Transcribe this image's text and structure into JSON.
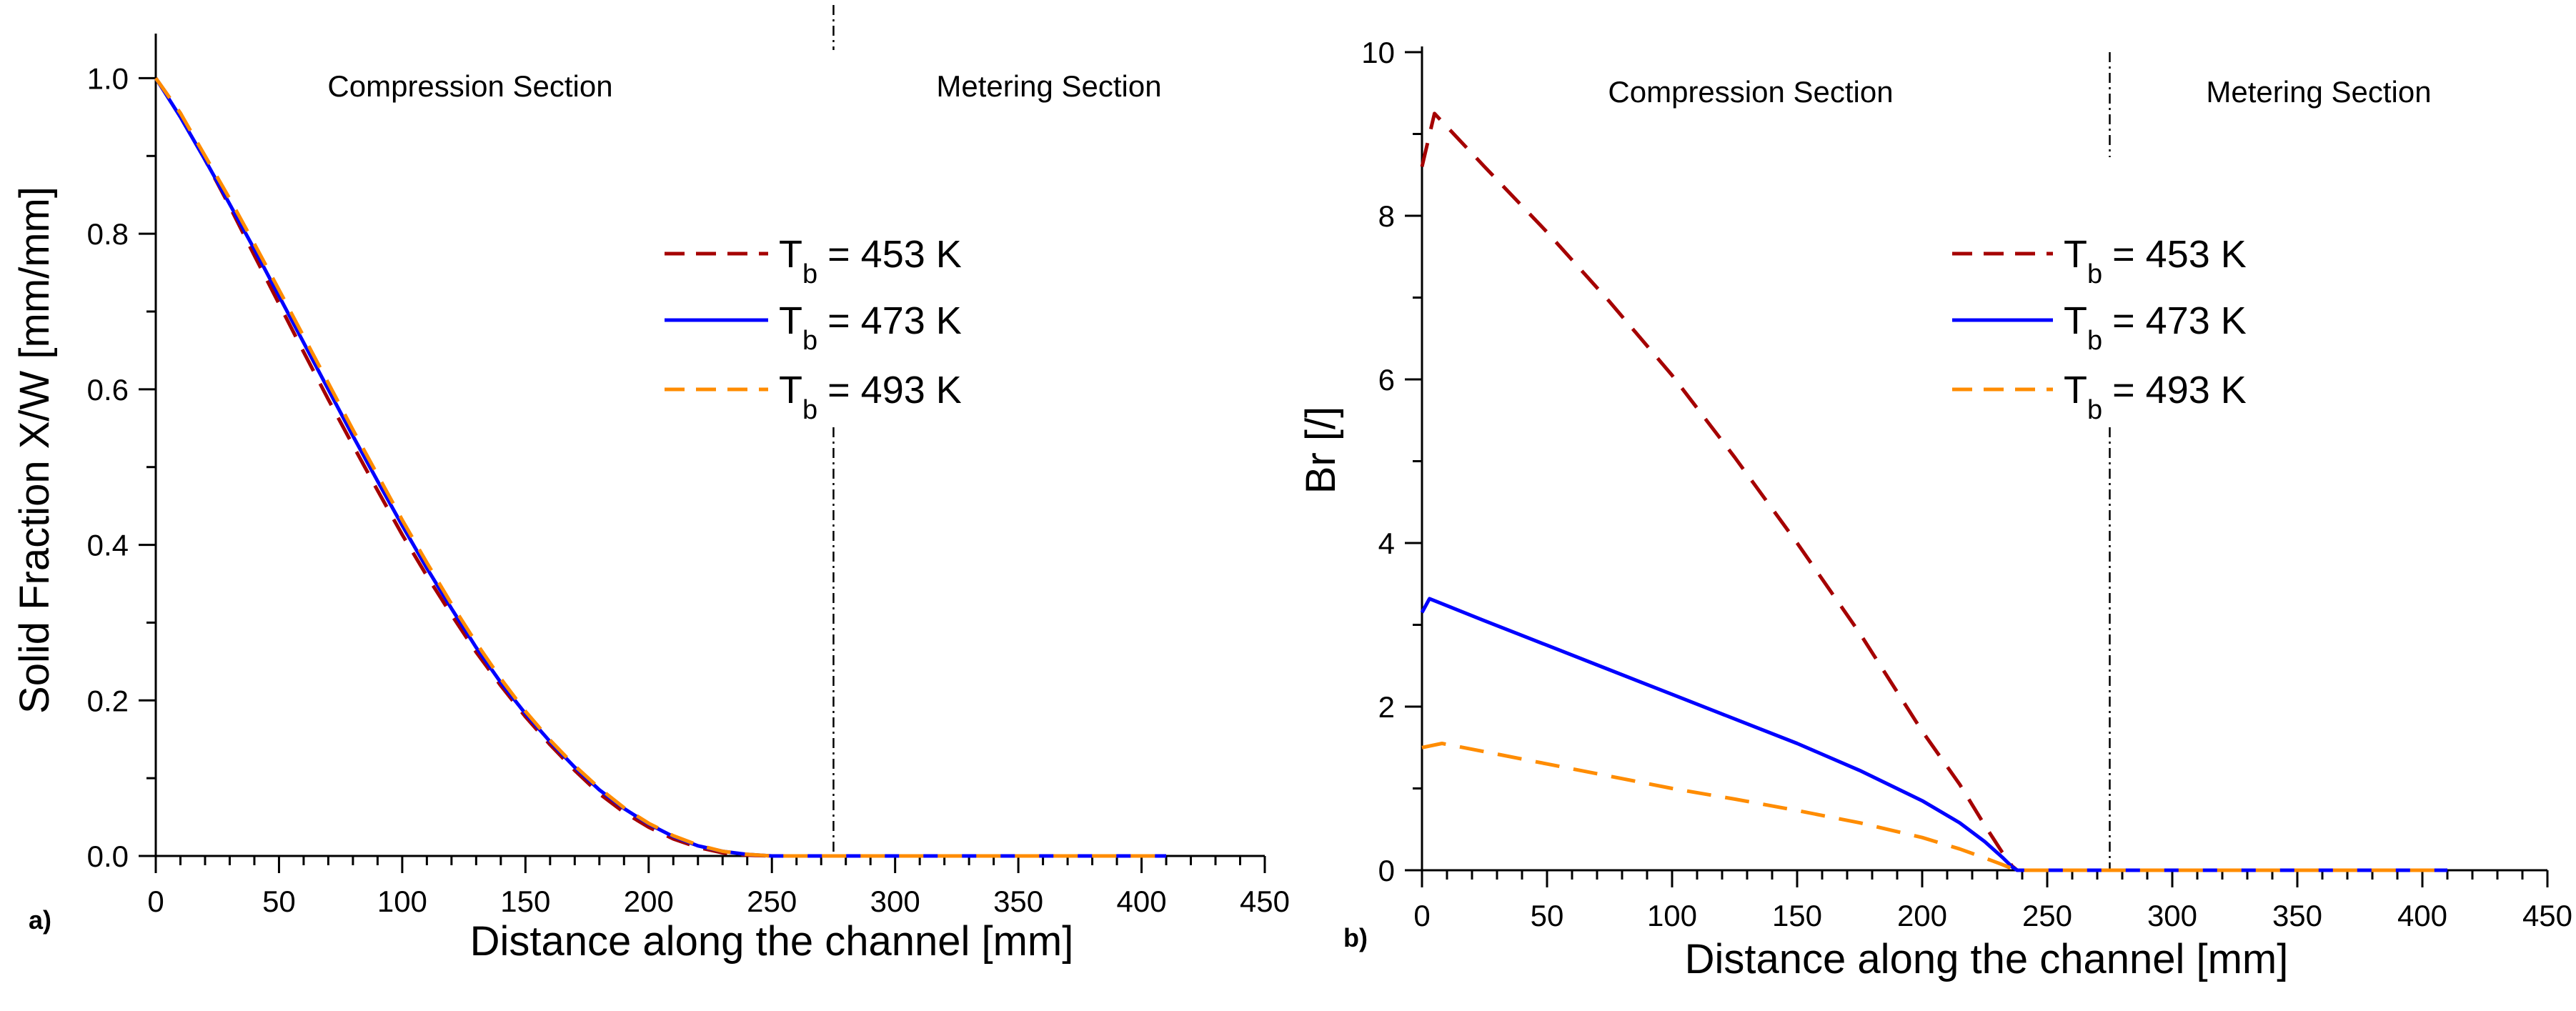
{
  "chart_data": [
    {
      "type": "line",
      "panel_label": "a)",
      "xlabel": "Distance along the channel [mm]",
      "ylabel": "Solid Fraction X/W [mm/mm]",
      "xlim": [
        0,
        450
      ],
      "ylim": [
        0,
        1.05
      ],
      "xticks": [
        "0",
        "50",
        "100",
        "150",
        "200",
        "250",
        "300",
        "350",
        "400",
        "450"
      ],
      "yticks": [
        "0.0",
        "0.2",
        "0.4",
        "0.6",
        "0.8",
        "1.0"
      ],
      "section_divider_x": 275,
      "sections": [
        "Compression Section",
        "Metering Section"
      ],
      "legend_position": "center-right",
      "series": [
        {
          "name": "T_b = 453 K",
          "sym": "T",
          "sub": "b",
          "value": "= 453 K",
          "color": "#a50000",
          "style": "dashed",
          "x": [
            0,
            10,
            20,
            30,
            40,
            50,
            60,
            70,
            80,
            90,
            100,
            110,
            120,
            130,
            140,
            150,
            160,
            170,
            180,
            190,
            200,
            210,
            220,
            230,
            240,
            250,
            258,
            270,
            300,
            350,
            410
          ],
          "y": [
            1.0,
            0.955,
            0.895,
            0.835,
            0.772,
            0.71,
            0.648,
            0.587,
            0.528,
            0.47,
            0.413,
            0.36,
            0.31,
            0.262,
            0.219,
            0.179,
            0.143,
            0.11,
            0.08,
            0.056,
            0.037,
            0.022,
            0.011,
            0.004,
            0.001,
            0.0,
            0.0,
            0.0,
            0.0,
            0.0,
            0.0
          ]
        },
        {
          "name": "T_b = 473 K",
          "sym": "T",
          "sub": "b",
          "value": "= 473 K",
          "color": "#0000ff",
          "style": "solid",
          "x": [
            0,
            10,
            20,
            30,
            40,
            50,
            60,
            70,
            80,
            90,
            100,
            110,
            120,
            130,
            140,
            150,
            160,
            170,
            180,
            190,
            200,
            210,
            220,
            230,
            240,
            250,
            262,
            270,
            300,
            350,
            410
          ],
          "y": [
            1.0,
            0.95,
            0.895,
            0.838,
            0.78,
            0.72,
            0.66,
            0.6,
            0.54,
            0.482,
            0.425,
            0.37,
            0.318,
            0.268,
            0.223,
            0.183,
            0.147,
            0.114,
            0.085,
            0.061,
            0.041,
            0.025,
            0.013,
            0.006,
            0.002,
            0.0,
            0.0,
            0.0,
            0.0,
            0.0,
            0.0
          ]
        },
        {
          "name": "T_b = 493 K",
          "sym": "T",
          "sub": "b",
          "value": "= 493 K",
          "color": "#ff8c00",
          "style": "dashed",
          "x": [
            0,
            10,
            20,
            30,
            40,
            50,
            60,
            70,
            80,
            90,
            100,
            110,
            120,
            130,
            140,
            150,
            160,
            170,
            180,
            190,
            200,
            210,
            220,
            230,
            240,
            250,
            262,
            270,
            300,
            350,
            410
          ],
          "y": [
            1.0,
            0.955,
            0.9,
            0.845,
            0.787,
            0.728,
            0.668,
            0.608,
            0.548,
            0.49,
            0.432,
            0.377,
            0.324,
            0.274,
            0.228,
            0.186,
            0.149,
            0.116,
            0.087,
            0.062,
            0.042,
            0.026,
            0.014,
            0.006,
            0.002,
            0.0,
            0.0,
            0.0,
            0.0,
            0.0,
            0.0
          ]
        }
      ]
    },
    {
      "type": "line",
      "panel_label": "b)",
      "xlabel": "Distance along the channel [mm]",
      "ylabel": "Br [/]",
      "xlim": [
        0,
        450
      ],
      "ylim": [
        0,
        10
      ],
      "xticks": [
        "0",
        "50",
        "100",
        "150",
        "200",
        "250",
        "300",
        "350",
        "400",
        "450"
      ],
      "yticks": [
        "0",
        "2",
        "4",
        "6",
        "8",
        "10"
      ],
      "section_divider_x": 275,
      "sections": [
        "Compression Section",
        "Metering Section"
      ],
      "legend_position": "center-right",
      "series": [
        {
          "name": "T_b = 453 K",
          "sym": "T",
          "sub": "b",
          "value": "= 453 K",
          "color": "#a50000",
          "style": "dashed",
          "x": [
            0,
            5,
            25,
            50,
            75,
            100,
            125,
            150,
            175,
            200,
            215,
            225,
            232,
            236,
            238,
            241,
            260,
            300,
            350,
            410
          ],
          "y": [
            8.6,
            9.25,
            8.6,
            7.8,
            6.95,
            6.05,
            5.05,
            4.0,
            2.9,
            1.7,
            1.05,
            0.55,
            0.22,
            0.05,
            0.0,
            0.0,
            0.0,
            0.0,
            0.0,
            0.0
          ]
        },
        {
          "name": "T_b = 473 K",
          "sym": "T",
          "sub": "b",
          "value": "= 473 K",
          "color": "#0000ff",
          "style": "solid",
          "x": [
            0,
            3,
            25,
            50,
            75,
            100,
            125,
            150,
            175,
            200,
            215,
            225,
            232,
            236,
            238,
            241,
            260,
            300,
            350,
            410
          ],
          "y": [
            3.15,
            3.32,
            3.05,
            2.75,
            2.45,
            2.15,
            1.85,
            1.55,
            1.22,
            0.85,
            0.58,
            0.35,
            0.16,
            0.04,
            0.0,
            0.0,
            0.0,
            0.0,
            0.0,
            0.0
          ]
        },
        {
          "name": "T_b = 493 K",
          "sym": "T",
          "sub": "b",
          "value": "= 493 K",
          "color": "#ff8c00",
          "style": "dashed",
          "x": [
            0,
            8,
            25,
            50,
            75,
            100,
            125,
            150,
            175,
            200,
            215,
            225,
            232,
            236,
            238,
            241,
            260,
            300,
            350,
            410
          ],
          "y": [
            1.5,
            1.55,
            1.45,
            1.3,
            1.15,
            1.0,
            0.87,
            0.73,
            0.58,
            0.4,
            0.26,
            0.15,
            0.07,
            0.02,
            0.0,
            0.0,
            0.0,
            0.0,
            0.0,
            0.0
          ]
        }
      ]
    }
  ]
}
